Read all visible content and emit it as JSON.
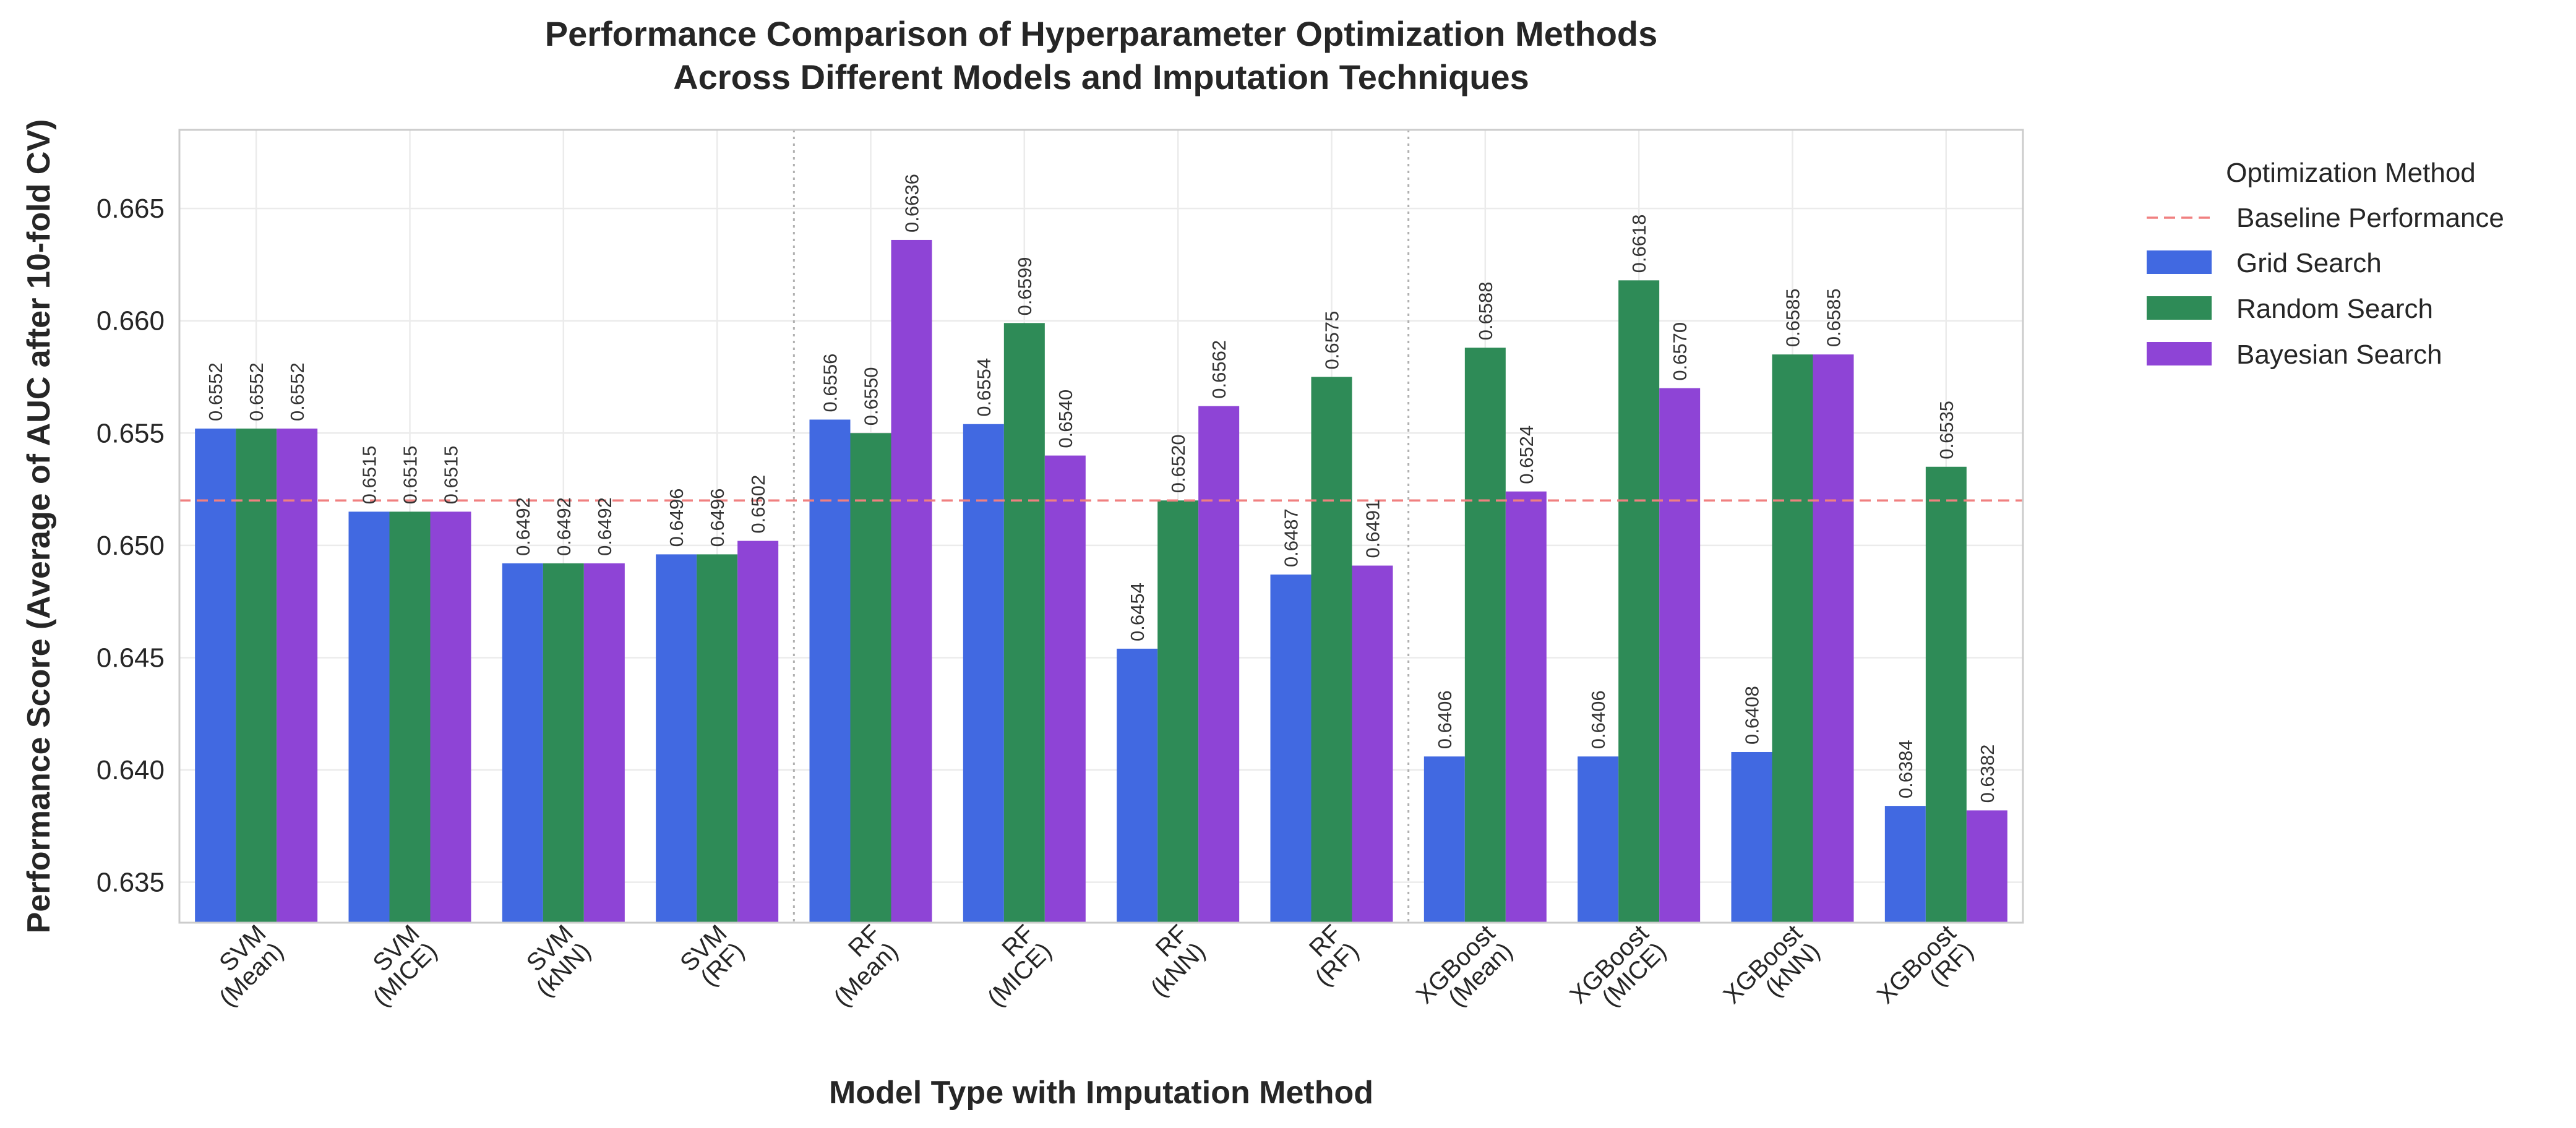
{
  "chart_data": {
    "type": "bar",
    "title_lines": [
      "Performance Comparison of Hyperparameter Optimization Methods",
      "Across Different Models and Imputation Techniques"
    ],
    "xlabel": "Model Type with Imputation Method",
    "ylabel": "Performance Score (Average of AUC after 10-fold CV)",
    "ylim": [
      0.6332,
      0.6685
    ],
    "yticks": [
      0.635,
      0.64,
      0.645,
      0.65,
      0.655,
      0.66,
      0.665
    ],
    "ytick_labels": [
      "0.635",
      "0.640",
      "0.645",
      "0.650",
      "0.655",
      "0.660",
      "0.665"
    ],
    "grid": true,
    "categories": [
      [
        "SVM",
        "(Mean)"
      ],
      [
        "SVM",
        "(MICE)"
      ],
      [
        "SVM",
        "(kNN)"
      ],
      [
        "SVM",
        "(RF)"
      ],
      [
        "RF",
        "(Mean)"
      ],
      [
        "RF",
        "(MICE)"
      ],
      [
        "RF",
        "(kNN)"
      ],
      [
        "RF",
        "(RF)"
      ],
      [
        "XGBoost",
        "(Mean)"
      ],
      [
        "XGBoost",
        "(MICE)"
      ],
      [
        "XGBoost",
        "(kNN)"
      ],
      [
        "XGBoost",
        "(RF)"
      ]
    ],
    "group_separators_after": [
      3,
      7
    ],
    "series": [
      {
        "name": "Grid Search",
        "color": "#4169E1",
        "values": [
          0.6552,
          0.6515,
          0.6492,
          0.6496,
          0.6556,
          0.6554,
          0.6454,
          0.6487,
          0.6406,
          0.6406,
          0.6408,
          0.6384
        ],
        "labels": [
          "0.6552",
          "0.6515",
          "0.6492",
          "0.6496",
          "0.6556",
          "0.6554",
          "0.6454",
          "0.6487",
          "0.6406",
          "0.6406",
          "0.6408",
          "0.6384"
        ]
      },
      {
        "name": "Random Search",
        "color": "#2E8B57",
        "values": [
          0.6552,
          0.6515,
          0.6492,
          0.6496,
          0.655,
          0.6599,
          0.652,
          0.6575,
          0.6588,
          0.6618,
          0.6585,
          0.6535
        ],
        "labels": [
          "0.6552",
          "0.6515",
          "0.6492",
          "0.6496",
          "0.6550",
          "0.6599",
          "0.6520",
          "0.6575",
          "0.6588",
          "0.6618",
          "0.6585",
          "0.6535"
        ]
      },
      {
        "name": "Bayesian Search",
        "color": "#8E44D6",
        "values": [
          0.6552,
          0.6515,
          0.6492,
          0.6502,
          0.6636,
          0.654,
          0.6562,
          0.6491,
          0.6524,
          0.657,
          0.6585,
          0.6382
        ],
        "labels": [
          "0.6552",
          "0.6515",
          "0.6492",
          "0.6502",
          "0.6636",
          "0.6540",
          "0.6562",
          "0.6491",
          "0.6524",
          "0.6570",
          "0.6585",
          "0.6382"
        ]
      }
    ],
    "baseline": {
      "name": "Baseline Performance",
      "value": 0.652,
      "color": "#F08080"
    },
    "legend": {
      "title": "Optimization Method",
      "placement": "outside-right-top",
      "entries": [
        "Baseline Performance",
        "Grid Search",
        "Random Search",
        "Bayesian Search"
      ]
    }
  }
}
